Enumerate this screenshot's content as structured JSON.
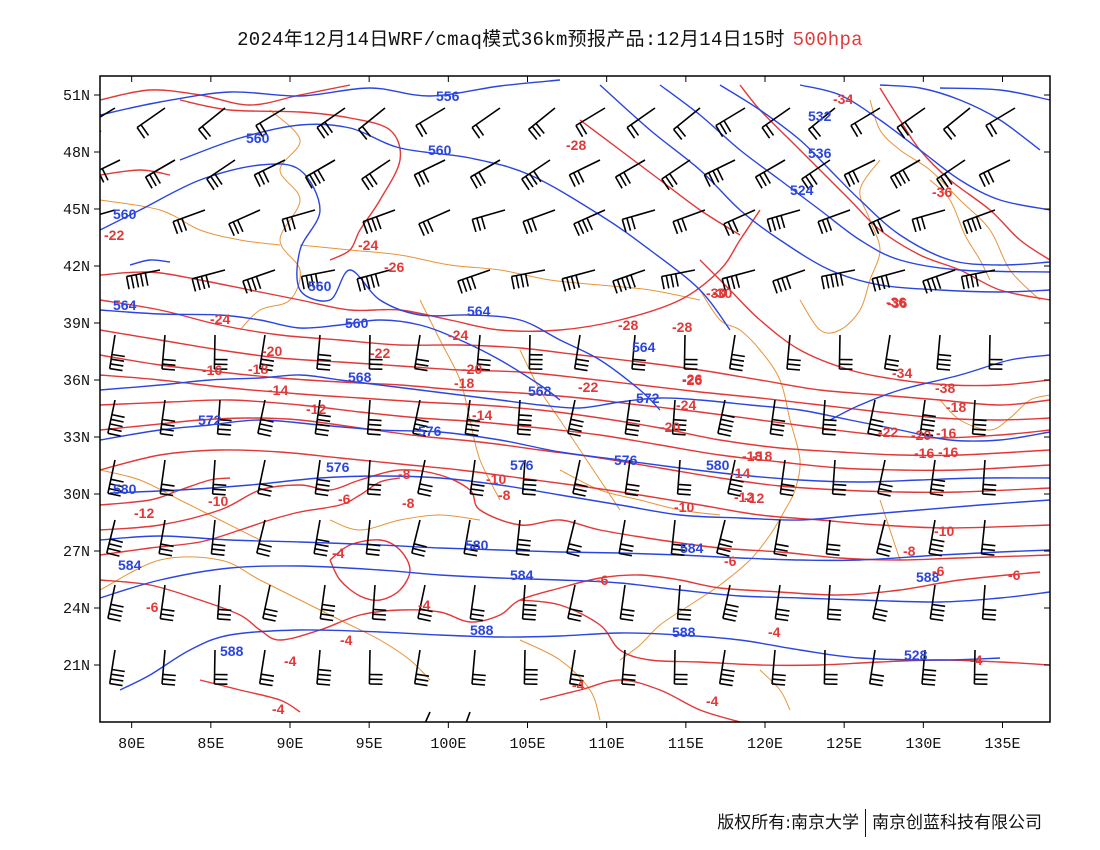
{
  "title": {
    "main": "2024年12月14日WRF/cmaq模式36km预报产品:12月14日15时",
    "level": "500hpa"
  },
  "colors": {
    "geopotential": "#2b45e0",
    "temperature": "#e33838",
    "coastline": "#e8943a",
    "wind_barb": "#000000",
    "frame": "#000000"
  },
  "axes": {
    "lon_ticks": [
      "80E",
      "85E",
      "90E",
      "95E",
      "100E",
      "105E",
      "110E",
      "115E",
      "120E",
      "125E",
      "130E",
      "135E"
    ],
    "lat_ticks": [
      "51N",
      "48N",
      "45N",
      "42N",
      "39N",
      "36N",
      "33N",
      "30N",
      "27N",
      "24N",
      "21N"
    ]
  },
  "footer": {
    "copyright": "版权所有:南京大学",
    "company": "南京创蓝科技有限公司"
  },
  "height_labels": [
    "556",
    "560",
    "560",
    "560",
    "560",
    "560",
    "564",
    "564",
    "564",
    "568",
    "568",
    "572",
    "572",
    "576",
    "576",
    "576",
    "576",
    "580",
    "580",
    "580",
    "584",
    "584",
    "584",
    "588",
    "588",
    "588",
    "588",
    "528",
    "532",
    "536",
    "524"
  ],
  "temp_labels": [
    "-34",
    "-28",
    "-36",
    "-22",
    "-24",
    "-26",
    "-30",
    "-28",
    "-36",
    "-24",
    "-24",
    "-20",
    "-22",
    "-16",
    "-18",
    "-20",
    "-18",
    "-14",
    "-12",
    "-22",
    "-26",
    "-24",
    "-14",
    "-20",
    "-18",
    "-16",
    "-10",
    "-8",
    "-6",
    "-12",
    "-10",
    "-8",
    "-6",
    "-4",
    "-4",
    "-6",
    "-4",
    "-4",
    "-4",
    "-4",
    "-4",
    "-6",
    "-6",
    "-8",
    "-10",
    "-12",
    "-14",
    "-16",
    "-18",
    "-20",
    "-22",
    "-26",
    "-28",
    "-30",
    "-34",
    "-36",
    "-38",
    "-16",
    "-18",
    "-8",
    "-10",
    "-12",
    "-4",
    "-4",
    "-6"
  ]
}
